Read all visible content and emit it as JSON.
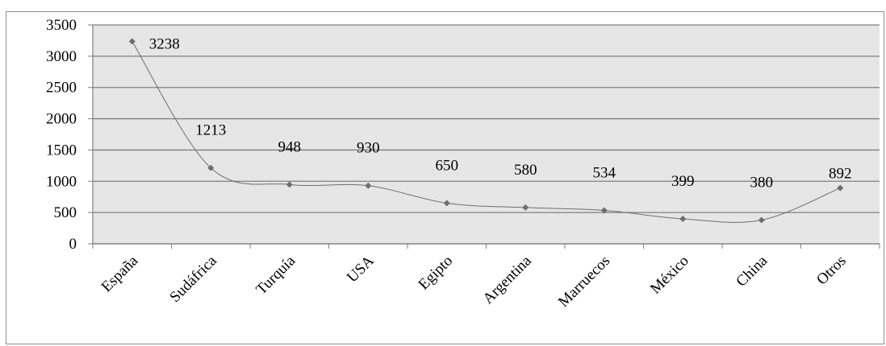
{
  "chart_data": {
    "type": "line",
    "title": "",
    "xlabel": "",
    "ylabel": "",
    "categories": [
      "España",
      "Sudáfrica",
      "Turquía",
      "USA",
      "Egipto",
      "Argentina",
      "Marruecos",
      "México",
      "China",
      "Otros"
    ],
    "series": [
      {
        "values": [
          3238,
          1213,
          948,
          930,
          650,
          580,
          534,
          399,
          380,
          892
        ]
      }
    ],
    "ylim": [
      0,
      3500
    ],
    "yticks": [
      0,
      500,
      1000,
      1500,
      2000,
      2500,
      3000,
      3500
    ],
    "grid": true,
    "smooth": true,
    "data_labels": [
      "3238",
      "1213",
      "948",
      "930",
      "650",
      "580",
      "534",
      "399",
      "380",
      "892"
    ],
    "colors": {
      "plot_area": "#e6e6e6",
      "gridline": "#7f7f7f",
      "line": "#6e6e6e",
      "marker": "#6e6e6e"
    }
  }
}
